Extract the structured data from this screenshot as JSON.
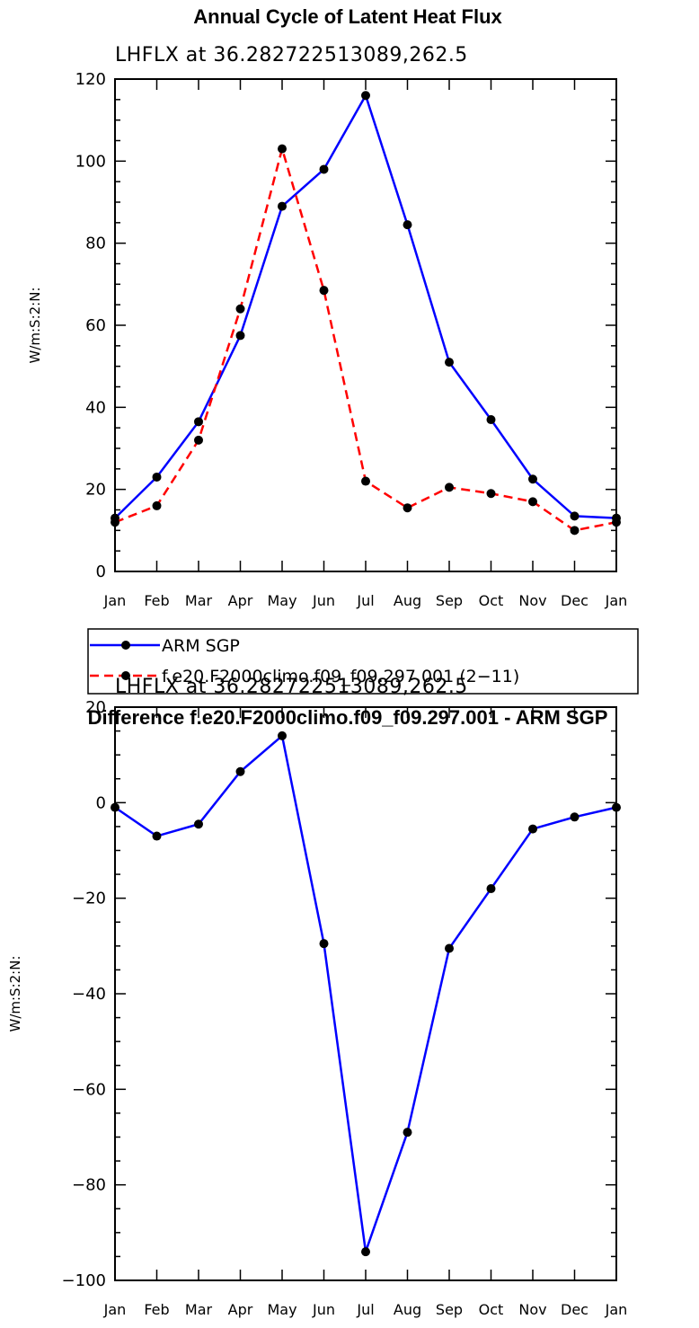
{
  "chart_data": [
    {
      "type": "line",
      "title": "Annual Cycle of Latent Heat Flux",
      "subtitle": "LHFLX at 36.282722513089,262.5",
      "ylabel": "W/m:S:2:N:",
      "xlabel": "",
      "categories": [
        "Jan",
        "Feb",
        "Mar",
        "Apr",
        "May",
        "Jun",
        "Jul",
        "Aug",
        "Sep",
        "Oct",
        "Nov",
        "Dec",
        "Jan"
      ],
      "ylim": [
        0,
        120
      ],
      "yticks": [
        0,
        20,
        40,
        60,
        80,
        100,
        120
      ],
      "series": [
        {
          "name": "ARM SGP",
          "color": "#0000ff",
          "style": "solid",
          "values": [
            13,
            23,
            36.5,
            57.5,
            89,
            98,
            116,
            84.5,
            51,
            37,
            22.5,
            13.5,
            13
          ]
        },
        {
          "name": "f.e20.F2000climo.f09_f09.297.001 (2−11)",
          "color": "#ff0000",
          "style": "dashed",
          "values": [
            12,
            16,
            32,
            64,
            103,
            68.5,
            22,
            15.5,
            20.5,
            19,
            17,
            10,
            12
          ]
        }
      ],
      "legend": "below"
    },
    {
      "type": "line",
      "title": "Difference f.e20.F2000climo.f09_f09.297.001 - ARM SGP",
      "subtitle": "LHFLX at 36.282722513089,262.5",
      "ylabel": "W/m:S:2:N:",
      "xlabel": "",
      "categories": [
        "Jan",
        "Feb",
        "Mar",
        "Apr",
        "May",
        "Jun",
        "Jul",
        "Aug",
        "Sep",
        "Oct",
        "Nov",
        "Dec",
        "Jan"
      ],
      "ylim": [
        -100,
        20
      ],
      "yticks": [
        -100,
        -80,
        -60,
        -40,
        -20,
        0,
        20
      ],
      "series": [
        {
          "name": "",
          "color": "#0000ff",
          "style": "solid",
          "values": [
            -1,
            -7,
            -4.5,
            6.5,
            14,
            -29.5,
            -94,
            -69,
            -30.5,
            -18,
            -5.5,
            -3,
            -1
          ]
        }
      ]
    }
  ]
}
